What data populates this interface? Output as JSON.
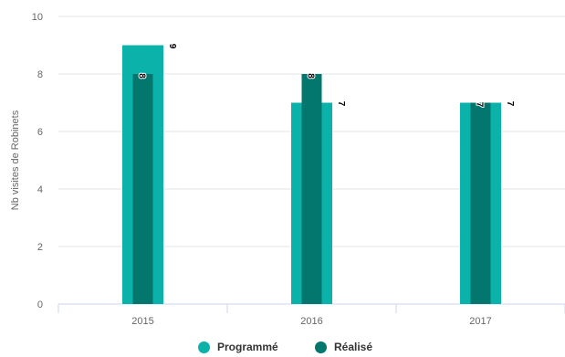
{
  "chart_data": {
    "type": "bar",
    "categories": [
      "2015",
      "2016",
      "2017"
    ],
    "series": [
      {
        "name": "Programmé",
        "values": [
          9,
          7,
          7
        ],
        "color": "#0bb2a9"
      },
      {
        "name": "Réalisé",
        "values": [
          8,
          8,
          7
        ],
        "color": "#03766d"
      }
    ],
    "ylabel": "Nb visites de Robinets",
    "xlabel": "",
    "ylim": [
      0,
      10
    ],
    "yticks": [
      0,
      2,
      4,
      6,
      8,
      10
    ],
    "grid": true,
    "legend_position": "bottom-center",
    "data_labels": true
  },
  "legend": {
    "items": [
      {
        "label": "Programmé",
        "color": "#0bb2a9"
      },
      {
        "label": "Réalisé",
        "color": "#03766d"
      }
    ]
  }
}
